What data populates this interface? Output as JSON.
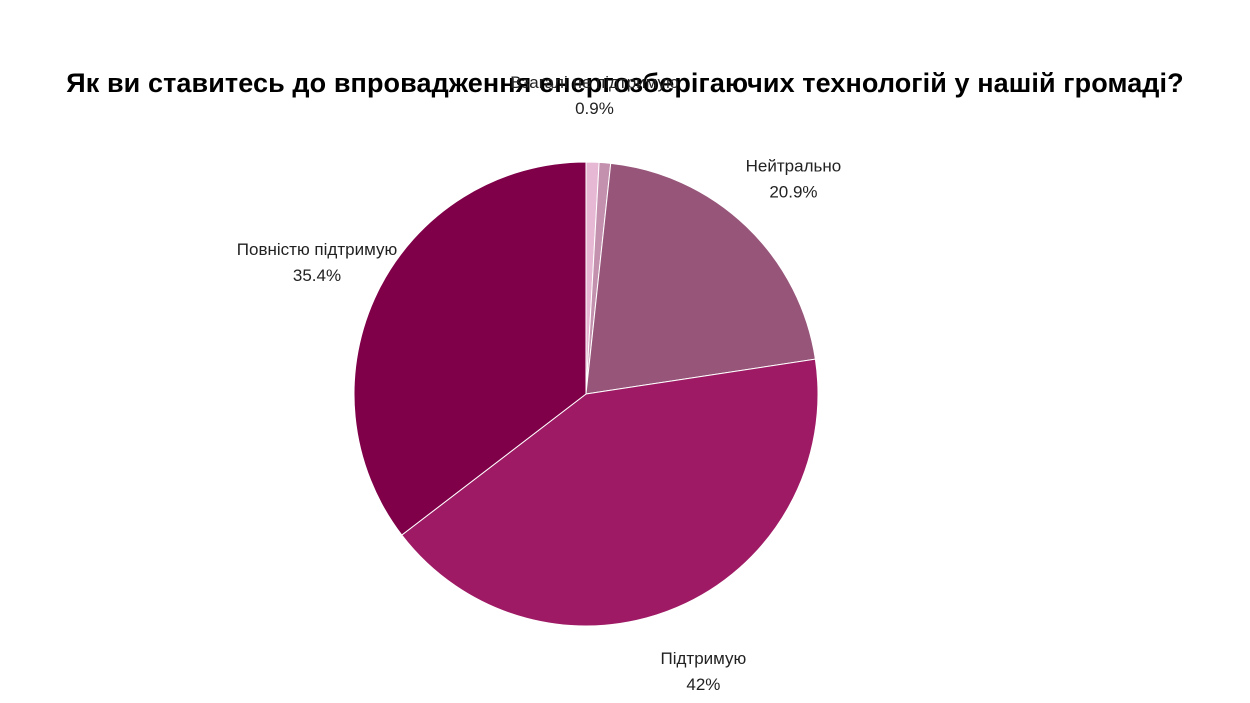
{
  "chart_data": {
    "type": "pie",
    "title": "Як ви ставитесь до впровадження енергозберігаючих технологій у нашій громаді?",
    "slices": [
      {
        "label": "Взагалі не підтримую",
        "value": 0.9,
        "value_label": "0.9%",
        "color": "#e6b8d3"
      },
      {
        "label": "",
        "value": 0.8,
        "value_label": "",
        "color": "#c390ae"
      },
      {
        "label": "Нейтрально",
        "value": 20.9,
        "value_label": "20.9%",
        "color": "#965579"
      },
      {
        "label": "Підтримую",
        "value": 42,
        "value_label": "42%",
        "color": "#9e1a64"
      },
      {
        "label": "Повністю підтримую",
        "value": 35.4,
        "value_label": "35.4%",
        "color": "#7f0048"
      }
    ],
    "start_angle": "12 o'clock",
    "direction": "clockwise"
  }
}
